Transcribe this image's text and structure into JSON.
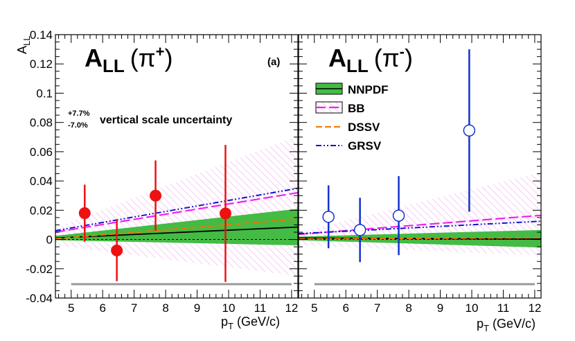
{
  "chart_data": [
    {
      "type": "line",
      "panel_label": "(a)",
      "title": {
        "main": "A",
        "sub": "LL",
        "paren_open": "(",
        "particle": "π",
        "charge": "+",
        "paren_close": ")"
      },
      "ylabel": {
        "main": "A",
        "sub": "LL"
      },
      "xlabel": {
        "main": "p",
        "sub": "T",
        "unit": " (GeV/c)"
      },
      "xlim": [
        4.5,
        12.2
      ],
      "ylim": [
        -0.04,
        0.14
      ],
      "xticks": [
        "5",
        "6",
        "7",
        "8",
        "9",
        "10",
        "11",
        "12"
      ],
      "yticks": [
        "-0.04",
        "-0.02",
        "0",
        "0.02",
        "0.04",
        "0.06",
        "0.08",
        "0.1",
        "0.12",
        "0.14"
      ],
      "annotation": {
        "plus": "+7.7%",
        "minus": "-7.0%",
        "text": "vertical scale uncertainty"
      },
      "scale_band": {
        "x": [
          5.0,
          12.0
        ],
        "y": -0.0305
      },
      "nnpdf_band": {
        "x": [
          4.5,
          12.2
        ],
        "upper": [
          0.0025,
          0.021
        ],
        "lower": [
          -0.0005,
          -0.004
        ],
        "central": [
          0.001,
          0.0085
        ]
      },
      "bb_band": {
        "x": [
          4.5,
          12.2
        ],
        "upper": [
          0.008,
          0.071
        ],
        "lower": [
          -0.004,
          -0.025
        ]
      },
      "curves": [
        {
          "name": "NNPDF",
          "x": [
            4.5,
            12.2
          ],
          "y": [
            0.001,
            0.0085
          ]
        },
        {
          "name": "BB",
          "x": [
            4.5,
            12.2
          ],
          "y": [
            0.005,
            0.032
          ]
        },
        {
          "name": "DSSV",
          "x": [
            4.5,
            12.2
          ],
          "y": [
            0.0005,
            0.014
          ]
        },
        {
          "name": "GRSV",
          "x": [
            4.5,
            12.2
          ],
          "y": [
            0.006,
            0.035
          ]
        }
      ],
      "points": [
        {
          "x": 5.43,
          "y": 0.018,
          "err_lo": 0.0195,
          "err_hi": 0.0195
        },
        {
          "x": 6.45,
          "y": -0.0075,
          "err_lo": 0.021,
          "err_hi": 0.021
        },
        {
          "x": 7.68,
          "y": 0.03,
          "err_lo": 0.024,
          "err_hi": 0.024
        },
        {
          "x": 9.9,
          "y": 0.0178,
          "err_lo": 0.0468,
          "err_hi": 0.0468
        }
      ]
    },
    {
      "type": "line",
      "title": {
        "main": "A",
        "sub": "LL",
        "paren_open": "(",
        "particle": "π",
        "charge": "-",
        "paren_close": ")"
      },
      "xlabel": {
        "main": "p",
        "sub": "T",
        "unit": " (GeV/c)"
      },
      "xlim": [
        4.5,
        12.2
      ],
      "ylim": [
        -0.04,
        0.14
      ],
      "xticks": [
        "5",
        "6",
        "7",
        "8",
        "9",
        "10",
        "11",
        "12"
      ],
      "legend": {
        "placement": "top-left",
        "entries": [
          {
            "name": "NNPDF",
            "style": "band-line",
            "color": "#33bb33"
          },
          {
            "name": "BB",
            "style": "hatch-dashed",
            "color": "#ee22ee"
          },
          {
            "name": "DSSV",
            "style": "dashed",
            "color": "#ee7700"
          },
          {
            "name": "GRSV",
            "style": "dash-dot",
            "color": "#1111cc"
          }
        ]
      },
      "scale_band": {
        "x": [
          5.0,
          12.0
        ],
        "y": -0.0305
      },
      "nnpdf_band": {
        "x": [
          4.5,
          12.2
        ],
        "upper": [
          0.002,
          0.0065
        ],
        "lower": [
          -0.0005,
          -0.0055
        ],
        "central": [
          0.001,
          0.0003
        ]
      },
      "bb_band": {
        "x": [
          4.5,
          12.2
        ],
        "upper": [
          0.005,
          0.046
        ],
        "lower": [
          -0.004,
          -0.011
        ]
      },
      "curves": [
        {
          "name": "NNPDF",
          "x": [
            4.5,
            12.2
          ],
          "y": [
            0.001,
            0.0003
          ]
        },
        {
          "name": "BB",
          "x": [
            4.5,
            12.2
          ],
          "y": [
            0.0035,
            0.0165
          ]
        },
        {
          "name": "DSSV",
          "x": [
            4.5,
            12.2
          ],
          "y": [
            0.0004,
            0.0012
          ]
        },
        {
          "name": "GRSV",
          "x": [
            4.5,
            12.2
          ],
          "y": [
            0.004,
            0.0125
          ]
        }
      ],
      "points": [
        {
          "x": 5.45,
          "y": 0.0155,
          "err_lo": 0.0215,
          "err_hi": 0.0215
        },
        {
          "x": 6.45,
          "y": 0.0065,
          "err_lo": 0.022,
          "err_hi": 0.022
        },
        {
          "x": 7.68,
          "y": 0.0163,
          "err_lo": 0.027,
          "err_hi": 0.027
        },
        {
          "x": 9.92,
          "y": 0.0745,
          "err_lo": 0.0555,
          "err_hi": 0.0555
        }
      ]
    }
  ],
  "colors": {
    "left_points": "#ee1111",
    "right_points": "#1133cc",
    "nnpdf_fill": "#44bb44",
    "nnpdf_line": "#000000",
    "bb": "#ee22ee",
    "bb_hatch": "#f4a8f0",
    "dssv": "#ee7700",
    "grsv": "#1111cc",
    "scale_band": "#999999"
  }
}
